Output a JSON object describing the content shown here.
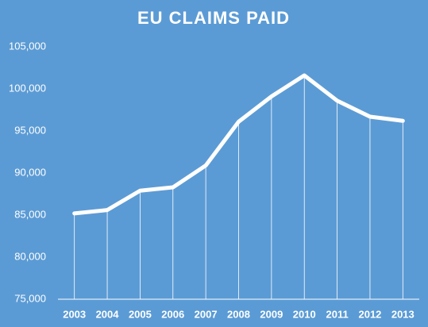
{
  "chart_data": {
    "type": "line",
    "title": "EU CLAIMS PAID",
    "categories": [
      "2003",
      "2004",
      "2005",
      "2006",
      "2007",
      "2008",
      "2009",
      "2010",
      "2011",
      "2012",
      "2013"
    ],
    "series": [
      {
        "color": "#ffffff",
        "values": [
          85200,
          85600,
          87900,
          88300,
          90900,
          96100,
          99100,
          101600,
          98600,
          96700,
          96200
        ]
      }
    ],
    "ylim": [
      75000,
      105000
    ],
    "yticks": [
      {
        "value": 75000,
        "label": "75,000"
      },
      {
        "value": 80000,
        "label": "80,000"
      },
      {
        "value": 85000,
        "label": "85,000"
      },
      {
        "value": 90000,
        "label": "90,000"
      },
      {
        "value": 95000,
        "label": "95,000"
      },
      {
        "value": 100000,
        "label": "100,000"
      },
      {
        "value": 105000,
        "label": "105,000"
      }
    ],
    "drop_lines": true,
    "grid": false,
    "background": "#5b9bd5"
  }
}
